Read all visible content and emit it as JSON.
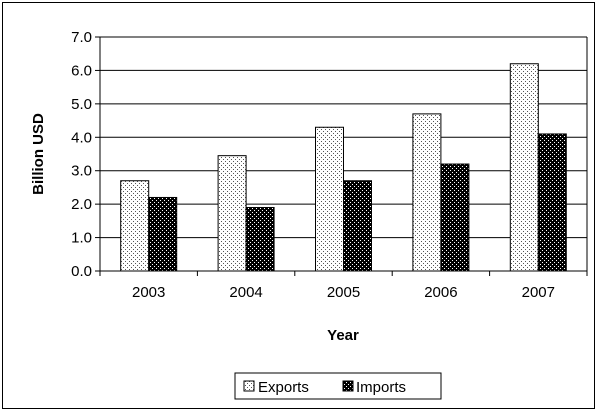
{
  "chart_data": {
    "type": "bar",
    "xlabel": "Year",
    "ylabel": "Billion USD",
    "categories": [
      "2003",
      "2004",
      "2005",
      "2006",
      "2007"
    ],
    "series": [
      {
        "name": "Exports",
        "values": [
          2.7,
          3.45,
          4.3,
          4.7,
          6.2
        ],
        "pattern": "light-dotted"
      },
      {
        "name": "Imports",
        "values": [
          2.2,
          1.9,
          2.7,
          3.2,
          4.1
        ],
        "pattern": "dark-dotted"
      }
    ],
    "ylim": [
      0,
      7
    ],
    "ytick_labels": [
      "0.0",
      "1.0",
      "2.0",
      "3.0",
      "4.0",
      "5.0",
      "6.0",
      "7.0"
    ],
    "grid": true,
    "legend_position": "bottom-center"
  }
}
